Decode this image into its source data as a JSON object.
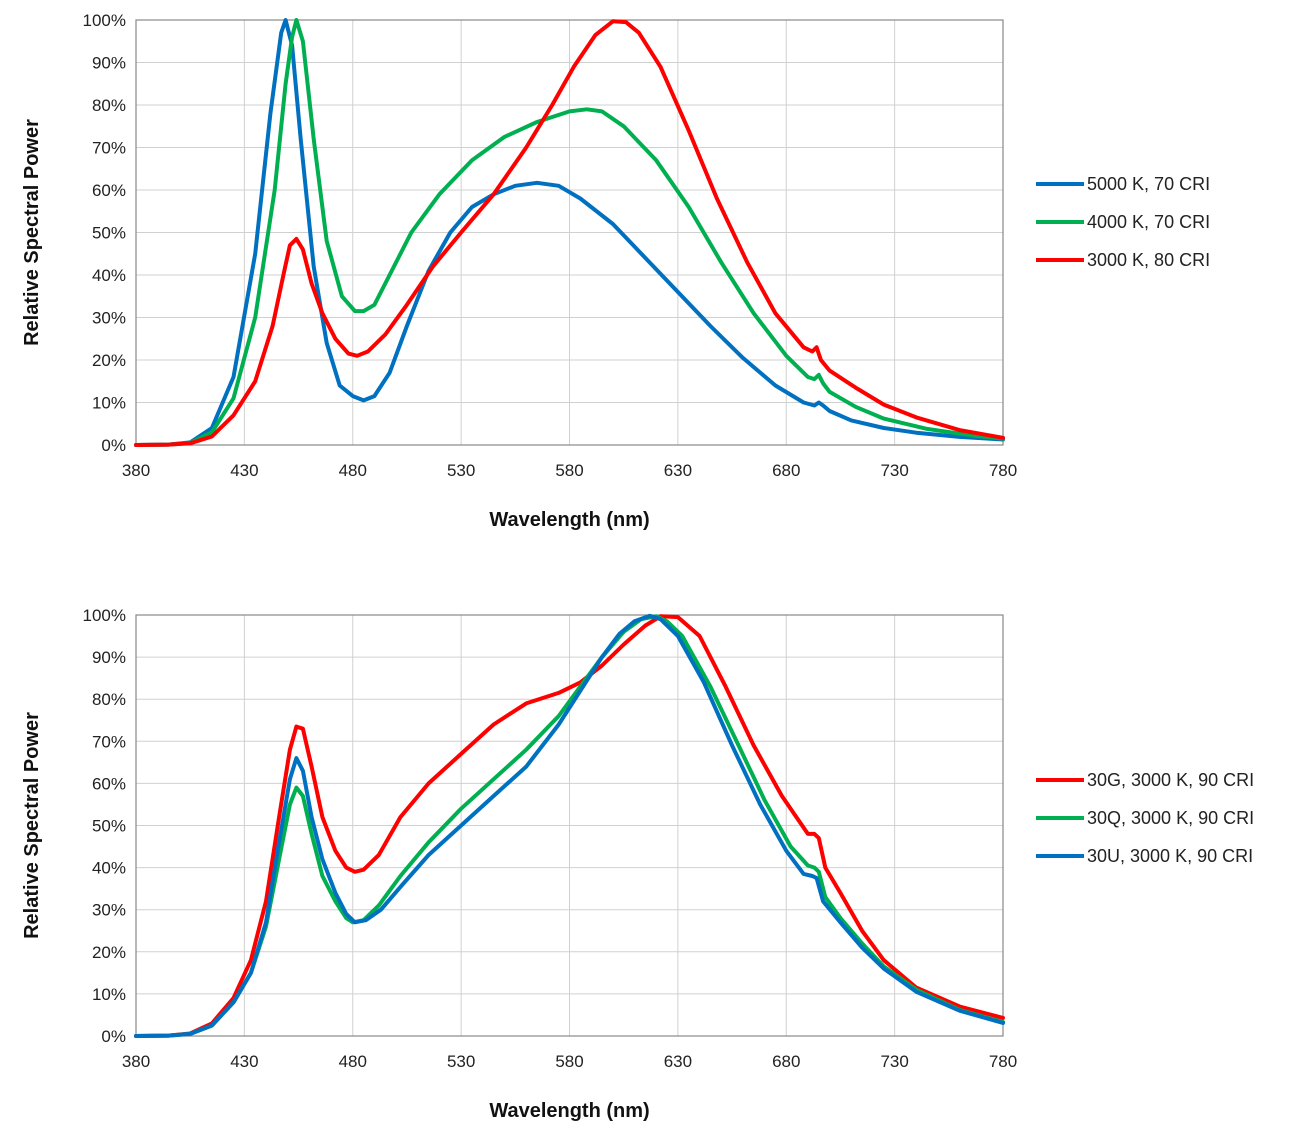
{
  "chart_data": [
    {
      "type": "line",
      "xlabel": "Wavelength (nm)",
      "ylabel": "Relative Spectral Power",
      "xlim": [
        380,
        780
      ],
      "ylim": [
        0,
        100
      ],
      "x_ticks": [
        "380",
        "430",
        "480",
        "530",
        "580",
        "630",
        "680",
        "730",
        "780"
      ],
      "y_ticks": [
        "0%",
        "10%",
        "20%",
        "30%",
        "40%",
        "50%",
        "60%",
        "70%",
        "80%",
        "90%",
        "100%"
      ],
      "grid": true,
      "legend_position": "right",
      "series": [
        {
          "name": "5000 K, 70 CRI",
          "color": "#0070c0",
          "points": [
            [
              380,
              0
            ],
            [
              395,
              0.1
            ],
            [
              405,
              0.6
            ],
            [
              415,
              4
            ],
            [
              425,
              16
            ],
            [
              435,
              45
            ],
            [
              442,
              78
            ],
            [
              447,
              97
            ],
            [
              449,
              100
            ],
            [
              452,
              94
            ],
            [
              456,
              72
            ],
            [
              462,
              42
            ],
            [
              468,
              24
            ],
            [
              474,
              14
            ],
            [
              480,
              11.5
            ],
            [
              485,
              10.5
            ],
            [
              490,
              11.5
            ],
            [
              497,
              17
            ],
            [
              505,
              28
            ],
            [
              515,
              41
            ],
            [
              525,
              50
            ],
            [
              535,
              56
            ],
            [
              545,
              59
            ],
            [
              555,
              61
            ],
            [
              565,
              61.7
            ],
            [
              575,
              61
            ],
            [
              585,
              58
            ],
            [
              600,
              52
            ],
            [
              615,
              44
            ],
            [
              630,
              36
            ],
            [
              645,
              28
            ],
            [
              660,
              20.5
            ],
            [
              675,
              14
            ],
            [
              688,
              10
            ],
            [
              693,
              9.3
            ],
            [
              695,
              10
            ],
            [
              697,
              9.3
            ],
            [
              700,
              8
            ],
            [
              710,
              5.8
            ],
            [
              725,
              4
            ],
            [
              740,
              2.9
            ],
            [
              760,
              1.9
            ],
            [
              780,
              1.3
            ]
          ]
        },
        {
          "name": "4000 K, 70 CRI",
          "color": "#00b050",
          "points": [
            [
              380,
              0
            ],
            [
              395,
              0.1
            ],
            [
              405,
              0.5
            ],
            [
              415,
              3
            ],
            [
              425,
              11
            ],
            [
              435,
              30
            ],
            [
              444,
              60
            ],
            [
              449,
              85
            ],
            [
              452,
              96
            ],
            [
              454,
              100
            ],
            [
              457,
              95
            ],
            [
              462,
              72
            ],
            [
              468,
              48
            ],
            [
              475,
              35
            ],
            [
              481,
              31.5
            ],
            [
              485,
              31.5
            ],
            [
              490,
              33
            ],
            [
              497,
              40
            ],
            [
              507,
              50
            ],
            [
              520,
              59
            ],
            [
              535,
              67
            ],
            [
              550,
              72.5
            ],
            [
              565,
              76
            ],
            [
              580,
              78.5
            ],
            [
              588,
              79
            ],
            [
              595,
              78.5
            ],
            [
              605,
              75
            ],
            [
              620,
              67
            ],
            [
              635,
              56
            ],
            [
              650,
              43
            ],
            [
              665,
              31
            ],
            [
              680,
              21
            ],
            [
              690,
              16
            ],
            [
              693,
              15.5
            ],
            [
              695,
              16.5
            ],
            [
              697,
              14.5
            ],
            [
              700,
              12.5
            ],
            [
              712,
              9
            ],
            [
              725,
              6.2
            ],
            [
              745,
              3.8
            ],
            [
              765,
              2.3
            ],
            [
              780,
              1.5
            ]
          ]
        },
        {
          "name": "3000 K, 80 CRI",
          "color": "#ff0000",
          "points": [
            [
              380,
              0
            ],
            [
              395,
              0.1
            ],
            [
              405,
              0.4
            ],
            [
              415,
              2
            ],
            [
              425,
              7
            ],
            [
              435,
              15
            ],
            [
              443,
              28
            ],
            [
              448,
              40
            ],
            [
              451,
              47
            ],
            [
              454,
              48.5
            ],
            [
              457,
              46
            ],
            [
              461,
              38
            ],
            [
              466,
              31
            ],
            [
              472,
              25
            ],
            [
              478,
              21.5
            ],
            [
              482,
              21
            ],
            [
              487,
              22
            ],
            [
              495,
              26
            ],
            [
              505,
              33
            ],
            [
              517,
              42
            ],
            [
              530,
              50
            ],
            [
              545,
              59
            ],
            [
              560,
              70
            ],
            [
              572,
              80
            ],
            [
              582,
              89
            ],
            [
              592,
              96.5
            ],
            [
              600,
              99.7
            ],
            [
              606,
              99.5
            ],
            [
              612,
              97
            ],
            [
              622,
              89
            ],
            [
              635,
              74
            ],
            [
              648,
              58
            ],
            [
              662,
              43
            ],
            [
              675,
              31
            ],
            [
              688,
              23
            ],
            [
              692,
              22
            ],
            [
              694,
              23
            ],
            [
              696,
              20
            ],
            [
              700,
              17.5
            ],
            [
              712,
              13.5
            ],
            [
              725,
              9.5
            ],
            [
              740,
              6.5
            ],
            [
              760,
              3.5
            ],
            [
              780,
              1.7
            ]
          ]
        }
      ]
    },
    {
      "type": "line",
      "xlabel": "Wavelength (nm)",
      "ylabel": "Relative Spectral Power",
      "xlim": [
        380,
        780
      ],
      "ylim": [
        0,
        100
      ],
      "x_ticks": [
        "380",
        "430",
        "480",
        "530",
        "580",
        "630",
        "680",
        "730",
        "780"
      ],
      "y_ticks": [
        "0%",
        "10%",
        "20%",
        "30%",
        "40%",
        "50%",
        "60%",
        "70%",
        "80%",
        "90%",
        "100%"
      ],
      "grid": true,
      "legend_position": "right",
      "series": [
        {
          "name": "30G, 3000 K, 90 CRI",
          "color": "#ff0000",
          "points": [
            [
              380,
              0
            ],
            [
              395,
              0.1
            ],
            [
              405,
              0.6
            ],
            [
              415,
              3
            ],
            [
              425,
              9
            ],
            [
              433,
              18
            ],
            [
              440,
              32
            ],
            [
              446,
              52
            ],
            [
              451,
              68
            ],
            [
              454,
              73.5
            ],
            [
              457,
              73
            ],
            [
              461,
              64
            ],
            [
              466,
              52
            ],
            [
              472,
              44
            ],
            [
              477,
              40
            ],
            [
              481,
              39
            ],
            [
              485,
              39.5
            ],
            [
              492,
              43
            ],
            [
              502,
              52
            ],
            [
              515,
              60
            ],
            [
              530,
              67
            ],
            [
              545,
              74
            ],
            [
              560,
              79
            ],
            [
              575,
              81.5
            ],
            [
              585,
              84
            ],
            [
              595,
              88
            ],
            [
              605,
              93
            ],
            [
              615,
              97.5
            ],
            [
              622,
              99.7
            ],
            [
              630,
              99.5
            ],
            [
              640,
              95
            ],
            [
              652,
              83
            ],
            [
              665,
              69
            ],
            [
              678,
              57
            ],
            [
              690,
              48
            ],
            [
              693,
              48
            ],
            [
              695,
              47
            ],
            [
              698,
              40
            ],
            [
              705,
              34
            ],
            [
              715,
              25
            ],
            [
              725,
              18
            ],
            [
              740,
              11.5
            ],
            [
              760,
              7
            ],
            [
              780,
              4.3
            ]
          ]
        },
        {
          "name": "30Q, 3000 K, 90 CRI",
          "color": "#00b050",
          "points": [
            [
              380,
              0
            ],
            [
              395,
              0.1
            ],
            [
              405,
              0.5
            ],
            [
              415,
              2.5
            ],
            [
              425,
              8
            ],
            [
              433,
              15
            ],
            [
              440,
              26
            ],
            [
              446,
              42
            ],
            [
              451,
              55
            ],
            [
              454,
              59
            ],
            [
              457,
              57
            ],
            [
              461,
              48
            ],
            [
              466,
              38
            ],
            [
              472,
              32
            ],
            [
              477,
              28
            ],
            [
              480,
              27
            ],
            [
              485,
              27.5
            ],
            [
              492,
              31
            ],
            [
              502,
              38
            ],
            [
              515,
              46
            ],
            [
              530,
              54
            ],
            [
              545,
              61
            ],
            [
              560,
              68
            ],
            [
              575,
              76
            ],
            [
              585,
              83
            ],
            [
              595,
              90
            ],
            [
              605,
              96
            ],
            [
              613,
              99
            ],
            [
              620,
              99.7
            ],
            [
              625,
              98.5
            ],
            [
              632,
              95
            ],
            [
              645,
              83
            ],
            [
              658,
              69
            ],
            [
              670,
              56
            ],
            [
              682,
              45
            ],
            [
              690,
              40.5
            ],
            [
              693,
              40
            ],
            [
              695,
              39
            ],
            [
              698,
              33
            ],
            [
              705,
              28
            ],
            [
              715,
              22
            ],
            [
              725,
              16.5
            ],
            [
              740,
              11
            ],
            [
              760,
              6.2
            ],
            [
              780,
              3.3
            ]
          ]
        },
        {
          "name": "30U, 3000 K, 90 CRI",
          "color": "#0070c0",
          "points": [
            [
              380,
              0
            ],
            [
              395,
              0.1
            ],
            [
              405,
              0.5
            ],
            [
              415,
              2.5
            ],
            [
              425,
              8
            ],
            [
              433,
              15
            ],
            [
              440,
              27
            ],
            [
              446,
              46
            ],
            [
              451,
              61
            ],
            [
              454,
              66
            ],
            [
              457,
              63
            ],
            [
              461,
              52
            ],
            [
              466,
              42
            ],
            [
              472,
              34
            ],
            [
              477,
              29
            ],
            [
              481,
              27
            ],
            [
              486,
              27.5
            ],
            [
              493,
              30
            ],
            [
              503,
              36
            ],
            [
              515,
              43
            ],
            [
              530,
              50
            ],
            [
              545,
              57
            ],
            [
              560,
              64
            ],
            [
              575,
              74
            ],
            [
              585,
              82
            ],
            [
              595,
              90
            ],
            [
              603,
              95.5
            ],
            [
              610,
              98.5
            ],
            [
              617,
              99.8
            ],
            [
              622,
              99
            ],
            [
              630,
              95
            ],
            [
              642,
              84
            ],
            [
              655,
              69
            ],
            [
              668,
              55
            ],
            [
              680,
              44
            ],
            [
              688,
              38.5
            ],
            [
              692,
              38
            ],
            [
              694,
              37.5
            ],
            [
              697,
              32
            ],
            [
              705,
              27
            ],
            [
              715,
              21
            ],
            [
              725,
              16
            ],
            [
              740,
              10.5
            ],
            [
              760,
              6
            ],
            [
              780,
              3.1
            ]
          ]
        }
      ]
    }
  ]
}
